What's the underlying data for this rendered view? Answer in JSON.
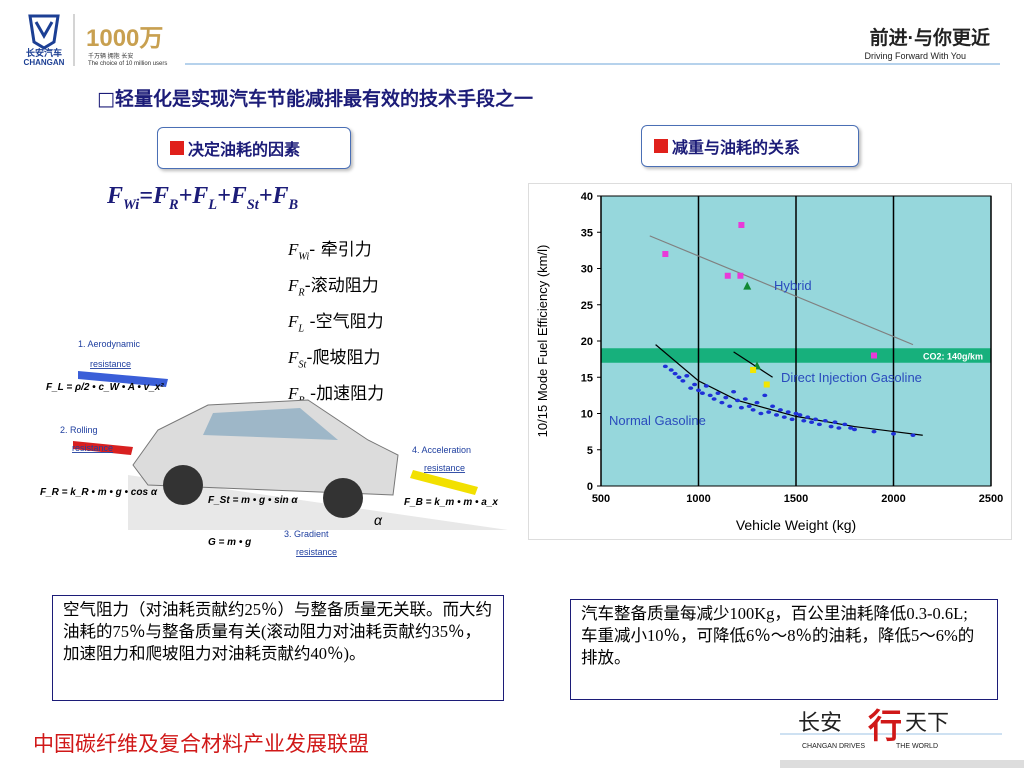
{
  "header": {
    "brand_cn": "长安汽车",
    "brand_en": "CHANGAN",
    "logo_number": "1000万",
    "logo_tagline": "千万辆 拥抱 长安",
    "logo_en": "The choice of 10 million users",
    "slogan_cn": "前进·与你更近",
    "slogan_en": "Driving Forward With You"
  },
  "headline": "轻量化是实现汽车节能减排最有效的技术手段之一",
  "left_title": "决定油耗的因素",
  "right_title": "减重与油耗的关系",
  "formula": [
    {
      "t": "F",
      "sub": "Wi"
    },
    {
      "t": "=F",
      "sub": "R"
    },
    {
      "t": "+F",
      "sub": "L"
    },
    {
      "t": "+F",
      "sub": "St"
    },
    {
      "t": "+F",
      "sub": "B"
    }
  ],
  "forces": [
    {
      "sym": "F",
      "sub": "Wi",
      "desc": "- 牵引力"
    },
    {
      "sym": "F",
      "sub": "R",
      "desc": "-滚动阻力"
    },
    {
      "sym": "F",
      "sub": "L",
      "desc": " -空气阻力"
    },
    {
      "sym": "F",
      "sub": "St",
      "desc": "-爬坡阻力"
    },
    {
      "sym": "F",
      "sub": "B",
      "desc": " -加速阻力"
    }
  ],
  "diagram": {
    "aero": [
      "1. Aerodynamic",
      "resistance"
    ],
    "rolling": [
      "2. Rolling",
      "resistance"
    ],
    "gradient": [
      "3. Gradient",
      "resistance"
    ],
    "accel": [
      "4. Acceleration",
      "resistance"
    ],
    "f_aero": "F_L = ρ/2 • c_W • A • v_x²",
    "f_roll": "F_R = k_R • m • g • cos α",
    "f_grad": "F_St = m • g • sin α",
    "f_accel": "F_B = k_m • m • a_x",
    "f_weight": "G = m • g",
    "angle": "α"
  },
  "chart_data": {
    "type": "scatter",
    "xlabel": "Vehicle Weight (kg)",
    "ylabel": "10/15 Mode Fuel Efficiency (km/l)",
    "xlim": [
      500,
      2500
    ],
    "xticks": [
      500,
      1000,
      1500,
      2000,
      2500
    ],
    "ylim": [
      0,
      40
    ],
    "yticks": [
      0,
      5,
      10,
      15,
      20,
      25,
      30,
      35,
      40
    ],
    "grid": "x",
    "background": "#96d7dc",
    "band": [
      17,
      19
    ],
    "band_color": "#17b07c",
    "band_label": "CO2: 140g/km",
    "annotations": [
      "Hybrid",
      "Direct Injection Gasoline",
      "Normal Gasoline"
    ],
    "series": [
      {
        "marker": "square",
        "color": "#e83ad8",
        "x": [
          830,
          1220,
          1150,
          1215,
          1900
        ],
        "values": [
          32,
          36,
          29,
          29,
          18
        ]
      },
      {
        "marker": "triangle",
        "color": "#118833",
        "x": [
          1250,
          1300
        ],
        "values": [
          27.5,
          16.5
        ]
      },
      {
        "marker": "square",
        "color": "#f2e600",
        "x": [
          1280,
          1350
        ],
        "values": [
          16,
          14
        ]
      },
      {
        "marker": "circle",
        "color": "#1f30d8",
        "x": [
          830,
          860,
          880,
          900,
          920,
          940,
          960,
          980,
          1000,
          1020,
          1040,
          1060,
          1080,
          1100,
          1120,
          1140,
          1160,
          1180,
          1200,
          1220,
          1240,
          1260,
          1280,
          1300,
          1320,
          1340,
          1360,
          1380,
          1400,
          1420,
          1440,
          1460,
          1480,
          1500,
          1520,
          1540,
          1560,
          1580,
          1600,
          1620,
          1650,
          1680,
          1700,
          1720,
          1750,
          1780,
          1800,
          1900,
          2000,
          2100
        ],
        "values": [
          16.5,
          16,
          15.5,
          15,
          14.5,
          15.2,
          13.5,
          14,
          13.2,
          12.8,
          13.8,
          12.5,
          12,
          12.8,
          11.5,
          12.2,
          11,
          13,
          11.8,
          10.8,
          12,
          11,
          10.5,
          11.5,
          10,
          12.5,
          10.2,
          11,
          9.8,
          10.5,
          9.5,
          10.2,
          9.2,
          10,
          9.8,
          9,
          9.5,
          8.8,
          9.2,
          8.5,
          9,
          8.2,
          8.8,
          8,
          8.5,
          8,
          7.8,
          7.5,
          7.2,
          7
        ]
      }
    ],
    "lines": [
      {
        "color": "#808080",
        "x": [
          750,
          2100
        ],
        "y": [
          34.5,
          19.5
        ]
      },
      {
        "color": "#000000",
        "x": [
          780,
          1000,
          1200,
          1500,
          1800,
          2150
        ],
        "y": [
          19.5,
          14.5,
          11.8,
          9.6,
          8.2,
          7
        ]
      },
      {
        "color": "#000000",
        "x": [
          1180,
          1380
        ],
        "y": [
          18.5,
          15
        ]
      }
    ]
  },
  "left_note": "空气阻力（对油耗贡献约25％）与整备质量无关联。而大约油耗的75％与整备质量有关(滚动阻力对油耗贡献约35％，加速阻力和爬坡阻力对油耗贡献约40％)。",
  "right_note": [
    "汽车整备质量每减少100Kg，百公里油耗降低0.3-0.6L;",
    "车重减小10％，可降低6％～8％的油耗，降低5～6%的排放。"
  ],
  "footer": "中国碳纤维及复合材料产业发展联盟",
  "footer_logo": {
    "left": "长安",
    "mid": "行",
    "right": "天下",
    "en_left": "CHANGAN DRIVES",
    "en_right": "THE WORLD"
  }
}
